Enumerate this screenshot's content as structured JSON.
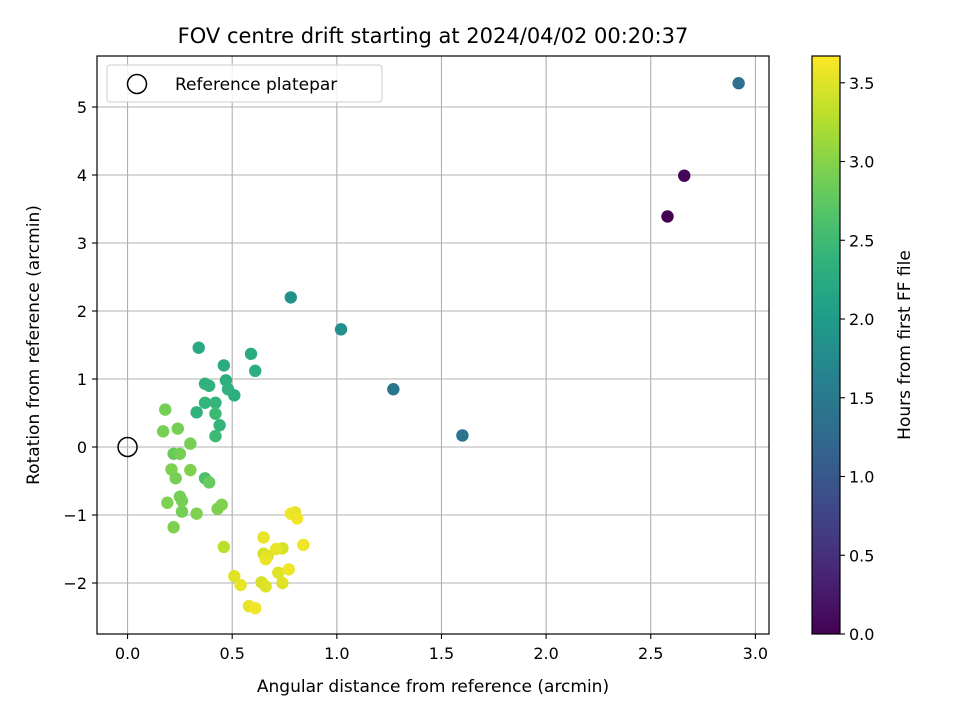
{
  "chart_data": {
    "type": "scatter",
    "title": "FOV centre drift starting at 2024/04/02 00:20:37",
    "xlabel": "Angular distance from reference (arcmin)",
    "ylabel": "Rotation from reference (arcmin)",
    "xlim": [
      -0.146,
      3.065
    ],
    "ylim": [
      -2.75,
      5.75
    ],
    "xticks": [
      0.0,
      0.5,
      1.0,
      1.5,
      2.0,
      2.5,
      3.0
    ],
    "xtick_labels": [
      "0.0",
      "0.5",
      "1.0",
      "1.5",
      "2.0",
      "2.5",
      "3.0"
    ],
    "yticks": [
      -2,
      -1,
      0,
      1,
      2,
      3,
      4,
      5
    ],
    "ytick_labels": [
      "−2",
      "−1",
      "0",
      "1",
      "2",
      "3",
      "4",
      "5"
    ],
    "grid": true,
    "legend": {
      "position": "top-left",
      "entries": [
        "Reference platepar"
      ]
    },
    "reference_point": {
      "x": 0.0,
      "y": 0.0,
      "label": "Reference platepar",
      "marker": "open-circle"
    },
    "colorbar": {
      "label": "Hours from first FF file",
      "colormap": "viridis",
      "range": [
        0.0,
        3.67
      ],
      "ticks": [
        0.0,
        0.5,
        1.0,
        1.5,
        2.0,
        2.5,
        3.0,
        3.5
      ],
      "tick_labels": [
        "0.0",
        "0.5",
        "1.0",
        "1.5",
        "2.0",
        "2.5",
        "3.0",
        "3.5"
      ]
    },
    "points": [
      {
        "x": 2.92,
        "y": 5.35,
        "hours": 1.35
      },
      {
        "x": 2.66,
        "y": 3.99,
        "hours": 0.05
      },
      {
        "x": 2.58,
        "y": 3.39,
        "hours": 0.0
      },
      {
        "x": 1.6,
        "y": 0.17,
        "hours": 1.4
      },
      {
        "x": 1.27,
        "y": 0.85,
        "hours": 1.45
      },
      {
        "x": 1.02,
        "y": 1.73,
        "hours": 1.8
      },
      {
        "x": 0.78,
        "y": 2.2,
        "hours": 1.85
      },
      {
        "x": 0.34,
        "y": 1.46,
        "hours": 2.2
      },
      {
        "x": 0.59,
        "y": 1.37,
        "hours": 2.25
      },
      {
        "x": 0.46,
        "y": 1.2,
        "hours": 2.25
      },
      {
        "x": 0.61,
        "y": 1.12,
        "hours": 2.3
      },
      {
        "x": 0.47,
        "y": 0.98,
        "hours": 2.3
      },
      {
        "x": 0.37,
        "y": 0.93,
        "hours": 2.35
      },
      {
        "x": 0.39,
        "y": 0.9,
        "hours": 2.35
      },
      {
        "x": 0.48,
        "y": 0.85,
        "hours": 2.35
      },
      {
        "x": 0.51,
        "y": 0.76,
        "hours": 2.3
      },
      {
        "x": 0.37,
        "y": 0.65,
        "hours": 2.4
      },
      {
        "x": 0.42,
        "y": 0.65,
        "hours": 2.4
      },
      {
        "x": 0.33,
        "y": 0.51,
        "hours": 2.35
      },
      {
        "x": 0.42,
        "y": 0.49,
        "hours": 2.5
      },
      {
        "x": 0.44,
        "y": 0.32,
        "hours": 2.4
      },
      {
        "x": 0.42,
        "y": 0.16,
        "hours": 2.5
      },
      {
        "x": 0.18,
        "y": 0.55,
        "hours": 2.9
      },
      {
        "x": 0.17,
        "y": 0.23,
        "hours": 2.9
      },
      {
        "x": 0.24,
        "y": 0.27,
        "hours": 2.9
      },
      {
        "x": 0.3,
        "y": 0.05,
        "hours": 2.9
      },
      {
        "x": 0.22,
        "y": -0.1,
        "hours": 2.8
      },
      {
        "x": 0.25,
        "y": -0.1,
        "hours": 2.9
      },
      {
        "x": 0.21,
        "y": -0.33,
        "hours": 2.95
      },
      {
        "x": 0.3,
        "y": -0.34,
        "hours": 2.95
      },
      {
        "x": 0.23,
        "y": -0.46,
        "hours": 2.9
      },
      {
        "x": 0.37,
        "y": -0.46,
        "hours": 2.6
      },
      {
        "x": 0.39,
        "y": -0.52,
        "hours": 2.8
      },
      {
        "x": 0.25,
        "y": -0.73,
        "hours": 2.9
      },
      {
        "x": 0.26,
        "y": -0.79,
        "hours": 2.9
      },
      {
        "x": 0.19,
        "y": -0.82,
        "hours": 2.95
      },
      {
        "x": 0.45,
        "y": -0.85,
        "hours": 2.95
      },
      {
        "x": 0.43,
        "y": -0.91,
        "hours": 2.95
      },
      {
        "x": 0.26,
        "y": -0.95,
        "hours": 2.9
      },
      {
        "x": 0.33,
        "y": -0.98,
        "hours": 2.95
      },
      {
        "x": 0.22,
        "y": -1.18,
        "hours": 2.95
      },
      {
        "x": 0.46,
        "y": -1.47,
        "hours": 3.3
      },
      {
        "x": 0.65,
        "y": -1.33,
        "hours": 3.55
      },
      {
        "x": 0.78,
        "y": -0.98,
        "hours": 3.6
      },
      {
        "x": 0.8,
        "y": -0.96,
        "hours": 3.55
      },
      {
        "x": 0.81,
        "y": -1.05,
        "hours": 3.6
      },
      {
        "x": 0.84,
        "y": -1.44,
        "hours": 3.6
      },
      {
        "x": 0.74,
        "y": -1.49,
        "hours": 3.45
      },
      {
        "x": 0.65,
        "y": -1.57,
        "hours": 3.45
      },
      {
        "x": 0.67,
        "y": -1.6,
        "hours": 3.5
      },
      {
        "x": 0.71,
        "y": -1.5,
        "hours": 3.55
      },
      {
        "x": 0.66,
        "y": -1.65,
        "hours": 3.55
      },
      {
        "x": 0.72,
        "y": -1.85,
        "hours": 3.5
      },
      {
        "x": 0.77,
        "y": -1.8,
        "hours": 3.6
      },
      {
        "x": 0.51,
        "y": -1.9,
        "hours": 3.5
      },
      {
        "x": 0.54,
        "y": -2.03,
        "hours": 3.55
      },
      {
        "x": 0.64,
        "y": -1.99,
        "hours": 3.45
      },
      {
        "x": 0.66,
        "y": -2.05,
        "hours": 3.5
      },
      {
        "x": 0.74,
        "y": -2.0,
        "hours": 3.5
      },
      {
        "x": 0.58,
        "y": -2.34,
        "hours": 3.55
      },
      {
        "x": 0.61,
        "y": -2.37,
        "hours": 3.6
      }
    ]
  }
}
